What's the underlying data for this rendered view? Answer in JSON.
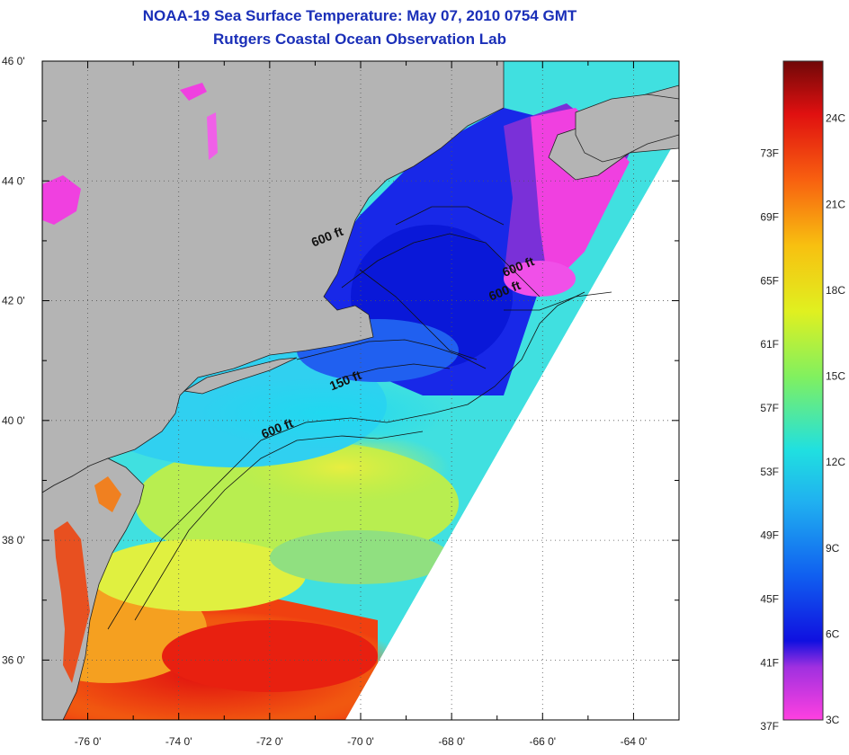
{
  "title": {
    "line1": "NOAA-19 Sea Surface Temperature:  May 07, 2010 0754 GMT",
    "line2": "Rutgers Coastal Ocean Observation Lab"
  },
  "map": {
    "lat_range": [
      35,
      46
    ],
    "lon_range": [
      -77,
      -63
    ],
    "lat_ticks": [
      {
        "value": 36,
        "label": "36 0'"
      },
      {
        "value": 38,
        "label": "38 0'"
      },
      {
        "value": 40,
        "label": "40 0'"
      },
      {
        "value": 42,
        "label": "42 0'"
      },
      {
        "value": 44,
        "label": "44 0'"
      },
      {
        "value": 46,
        "label": "46 0'"
      }
    ],
    "lon_ticks": [
      {
        "value": -76,
        "label": "-76 0'"
      },
      {
        "value": -74,
        "label": "-74 0'"
      },
      {
        "value": -72,
        "label": "-72 0'"
      },
      {
        "value": -70,
        "label": "-70 0'"
      },
      {
        "value": -68,
        "label": "-68 0'"
      },
      {
        "value": -66,
        "label": "-66 0'"
      },
      {
        "value": -64,
        "label": "-64 0'"
      }
    ],
    "contour_labels": [
      {
        "text": "600 ft",
        "lon": -70.7,
        "lat": 43.0
      },
      {
        "text": "600 ft",
        "lon": -66.5,
        "lat": 42.5
      },
      {
        "text": "600 ft",
        "lon": -66.8,
        "lat": 42.1
      },
      {
        "text": "150 ft",
        "lon": -70.3,
        "lat": 40.6
      },
      {
        "text": "600 ft",
        "lon": -71.8,
        "lat": 39.8
      }
    ],
    "land_color": "#b4b4b4",
    "no_data_color": "#ffffff"
  },
  "legend": {
    "min_c": 3,
    "max_c": 26,
    "fahrenheit_labels": [
      "37F",
      "41F",
      "45F",
      "49F",
      "53F",
      "57F",
      "61F",
      "65F",
      "69F",
      "73F"
    ],
    "celsius_labels": [
      "3C",
      "6C",
      "9C",
      "12C",
      "15C",
      "18C",
      "21C",
      "24C"
    ]
  }
}
